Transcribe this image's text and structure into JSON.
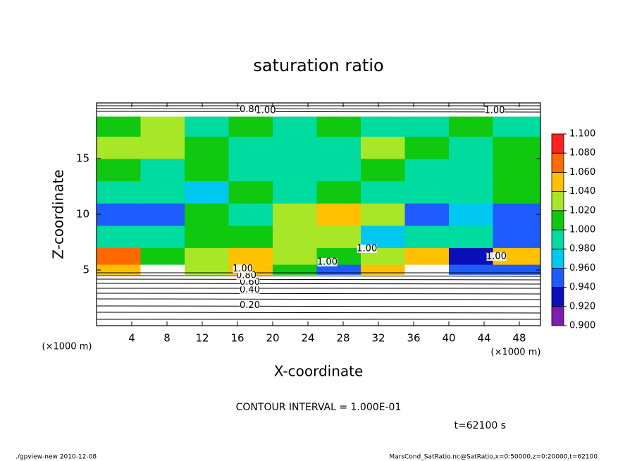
{
  "chart_data": {
    "type": "heatmap",
    "title": "saturation ratio",
    "x_label": "X-coordinate",
    "y_label": "Z-coordinate",
    "x_unit": "(×1000 m)",
    "y_unit": "(×1000 m)",
    "xlim": [
      0,
      50.4
    ],
    "ylim": [
      0,
      20
    ],
    "xticks": [
      4,
      8,
      12,
      16,
      20,
      24,
      28,
      32,
      36,
      40,
      44,
      48
    ],
    "yticks": [
      5,
      10,
      15
    ],
    "field": {
      "x_edges": [
        0,
        5,
        10,
        15,
        20,
        25,
        30,
        35,
        40,
        45,
        50.4
      ],
      "z_edges": [
        0,
        4.6,
        5.5,
        7,
        9,
        11,
        13,
        15,
        17,
        18.8,
        20
      ],
      "values": [
        [
          0.5,
          0.5,
          0.5,
          0.5,
          0.5,
          0.5,
          0.5,
          0.5,
          0.5,
          0.5
        ],
        [
          1.06,
          0.85,
          1.04,
          1.06,
          1.02,
          0.96,
          1.05,
          0.85,
          0.95,
          0.96
        ],
        [
          1.07,
          1.02,
          1.04,
          1.06,
          1.03,
          1.02,
          1.04,
          1.05,
          0.94,
          1.06
        ],
        [
          1.0,
          1.0,
          1.01,
          1.02,
          1.04,
          1.03,
          0.97,
          1.0,
          0.99,
          0.96
        ],
        [
          0.95,
          0.96,
          1.01,
          1.0,
          1.03,
          1.05,
          1.04,
          0.95,
          0.97,
          0.96
        ],
        [
          1.0,
          1.0,
          0.97,
          1.01,
          1.0,
          1.01,
          1.0,
          1.0,
          1.0,
          1.01
        ],
        [
          1.02,
          1.0,
          1.01,
          1.0,
          0.99,
          1.0,
          1.01,
          1.0,
          0.99,
          1.01
        ],
        [
          1.04,
          1.03,
          1.01,
          1.0,
          1.0,
          1.0,
          1.03,
          1.01,
          1.0,
          1.01
        ],
        [
          1.02,
          1.03,
          1.0,
          1.02,
          1.0,
          1.01,
          1.0,
          1.0,
          1.01,
          1.0
        ],
        [
          0.5,
          0.5,
          0.5,
          0.5,
          0.5,
          0.5,
          0.5,
          0.5,
          0.5,
          0.5
        ]
      ]
    },
    "colorbar": {
      "levels": [
        {
          "value": 0.9,
          "label": "0.900"
        },
        {
          "value": 0.92,
          "label": "0.920"
        },
        {
          "value": 0.94,
          "label": "0.940"
        },
        {
          "value": 0.96,
          "label": "0.960"
        },
        {
          "value": 0.98,
          "label": "0.980"
        },
        {
          "value": 1.0,
          "label": "1.000"
        },
        {
          "value": 1.02,
          "label": "1.020"
        },
        {
          "value": 1.04,
          "label": "1.040"
        },
        {
          "value": 1.06,
          "label": "1.060"
        },
        {
          "value": 1.08,
          "label": "1.080"
        },
        {
          "value": 1.1,
          "label": "1.100"
        }
      ],
      "colors": [
        "#7a1fb0",
        "#0a10b8",
        "#1e5cff",
        "#00c8f0",
        "#00dca0",
        "#10c810",
        "#a8e628",
        "#ffc000",
        "#ff6a00",
        "#ff2020"
      ],
      "under_color": "#ffffff",
      "over_color": "#ff9090"
    },
    "annotations": [
      {
        "text": "0.20",
        "x": 17.4,
        "y": 1.8
      },
      {
        "text": "0.40",
        "x": 17.4,
        "y": 3.2
      },
      {
        "text": "0.60",
        "x": 17.4,
        "y": 3.9
      },
      {
        "text": "0.80",
        "x": 17.0,
        "y": 4.5
      },
      {
        "text": "1.00",
        "x": 16.6,
        "y": 5.1
      },
      {
        "text": "0.80",
        "x": 17.4,
        "y": 19.4
      },
      {
        "text": "1.00",
        "x": 19.2,
        "y": 19.3
      },
      {
        "text": "1.00",
        "x": 45.2,
        "y": 19.3
      },
      {
        "text": "1.00",
        "x": 30.7,
        "y": 6.9
      },
      {
        "text": "1.00",
        "x": 26.2,
        "y": 5.7
      },
      {
        "text": "1.00",
        "x": 45.4,
        "y": 6.2
      }
    ],
    "contour_interval": "CONTOUR INTERVAL = 1.000E-01",
    "time_label": "t=62100 s",
    "footer_left": "./gpview-new  2010-12-08",
    "footer_right": "MarsCond_SatRatio.nc@SatRatio,x=0:50000,z=0:20000,t=62100"
  }
}
